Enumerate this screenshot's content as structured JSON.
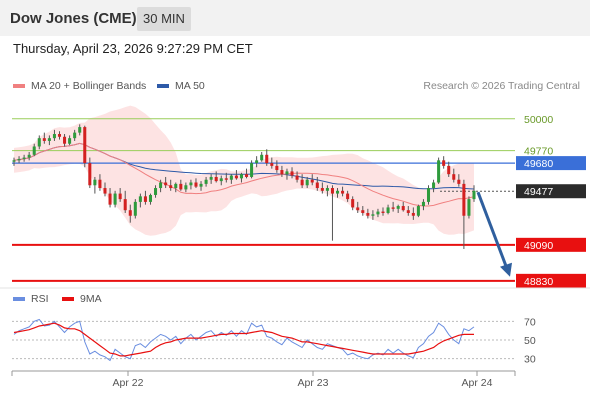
{
  "header": {
    "title": "Dow Jones (CME)",
    "interval": "30 MIN"
  },
  "datetime": "Thursday, April 23, 2026 9:27:29 PM CET",
  "legend": {
    "ma20": "MA 20 + Bollinger Bands",
    "ma50": "MA 50",
    "rsi": "RSI",
    "ma9": "9MA"
  },
  "copyright": "Research © 2026 Trading Central",
  "colors": {
    "ma20": "#f08080",
    "ma50": "#2e5aa8",
    "band": "#fde3e3",
    "bull": "#2e9b3c",
    "bear": "#d32020",
    "green_level": "#9acd5a",
    "blue_level": "#3a6fd8",
    "red_level": "#e81010",
    "current": "#333333",
    "rsi_line": "#6a8ee0",
    "rsi_ma": "#e81010"
  },
  "chart_data": {
    "type": "candlestick",
    "ylim": [
      48800,
      50150
    ],
    "levels": [
      {
        "value": 50000,
        "label": "50000",
        "kind": "green"
      },
      {
        "value": 49770,
        "label": "49770",
        "kind": "green"
      },
      {
        "value": 49680,
        "label": "49680",
        "kind": "blue"
      },
      {
        "value": 49477,
        "label": "49477",
        "kind": "current"
      },
      {
        "value": 49090,
        "label": "49090",
        "kind": "red"
      },
      {
        "value": 48830,
        "label": "48830",
        "kind": "red"
      }
    ],
    "x_ticks": [
      "Apr 22",
      "Apr 23",
      "Apr 24"
    ],
    "forecast_arrow": {
      "from": 49470,
      "to": 48860
    },
    "candles": [
      [
        49690,
        49720,
        49660,
        49700
      ],
      [
        49700,
        49730,
        49680,
        49710
      ],
      [
        49710,
        49740,
        49690,
        49720
      ],
      [
        49720,
        49760,
        49700,
        49740
      ],
      [
        49740,
        49820,
        49730,
        49800
      ],
      [
        49800,
        49880,
        49780,
        49860
      ],
      [
        49860,
        49900,
        49820,
        49840
      ],
      [
        49840,
        49880,
        49810,
        49860
      ],
      [
        49860,
        49920,
        49840,
        49890
      ],
      [
        49890,
        49910,
        49850,
        49870
      ],
      [
        49870,
        49890,
        49800,
        49820
      ],
      [
        49820,
        49880,
        49810,
        49860
      ],
      [
        49860,
        49920,
        49840,
        49900
      ],
      [
        49900,
        49960,
        49880,
        49940
      ],
      [
        49940,
        49950,
        49650,
        49680
      ],
      [
        49680,
        49720,
        49500,
        49520
      ],
      [
        49520,
        49580,
        49460,
        49560
      ],
      [
        49560,
        49600,
        49480,
        49500
      ],
      [
        49500,
        49540,
        49440,
        49460
      ],
      [
        49460,
        49500,
        49360,
        49380
      ],
      [
        49380,
        49480,
        49360,
        49460
      ],
      [
        49460,
        49500,
        49400,
        49420
      ],
      [
        49420,
        49480,
        49320,
        49340
      ],
      [
        49340,
        49380,
        49250,
        49300
      ],
      [
        49300,
        49420,
        49280,
        49400
      ],
      [
        49400,
        49460,
        49360,
        49440
      ],
      [
        49440,
        49480,
        49380,
        49400
      ],
      [
        49400,
        49460,
        49380,
        49450
      ],
      [
        49450,
        49520,
        49430,
        49500
      ],
      [
        49500,
        49560,
        49470,
        49540
      ],
      [
        49540,
        49580,
        49500,
        49520
      ],
      [
        49520,
        49560,
        49480,
        49500
      ],
      [
        49500,
        49540,
        49470,
        49530
      ],
      [
        49530,
        49560,
        49480,
        49490
      ],
      [
        49490,
        49540,
        49470,
        49520
      ],
      [
        49520,
        49560,
        49490,
        49540
      ],
      [
        49540,
        49570,
        49500,
        49510
      ],
      [
        49510,
        49550,
        49480,
        49530
      ],
      [
        49530,
        49580,
        49510,
        49560
      ],
      [
        49560,
        49600,
        49530,
        49580
      ],
      [
        49580,
        49620,
        49540,
        49550
      ],
      [
        49550,
        49590,
        49520,
        49570
      ],
      [
        49570,
        49610,
        49540,
        49560
      ],
      [
        49560,
        49600,
        49530,
        49590
      ],
      [
        49590,
        49630,
        49560,
        49570
      ],
      [
        49570,
        49610,
        49540,
        49600
      ],
      [
        49600,
        49640,
        49570,
        49580
      ],
      [
        49580,
        49700,
        49570,
        49680
      ],
      [
        49680,
        49730,
        49650,
        49700
      ],
      [
        49700,
        49760,
        49690,
        49740
      ],
      [
        49740,
        49780,
        49660,
        49680
      ],
      [
        49680,
        49720,
        49640,
        49660
      ],
      [
        49660,
        49700,
        49610,
        49630
      ],
      [
        49630,
        49660,
        49580,
        49600
      ],
      [
        49600,
        49640,
        49560,
        49620
      ],
      [
        49620,
        49650,
        49570,
        49590
      ],
      [
        49590,
        49620,
        49540,
        49560
      ],
      [
        49560,
        49600,
        49500,
        49520
      ],
      [
        49520,
        49580,
        49500,
        49560
      ],
      [
        49560,
        49600,
        49520,
        49540
      ],
      [
        49540,
        49580,
        49480,
        49500
      ],
      [
        49500,
        49540,
        49460,
        49480
      ],
      [
        49480,
        49520,
        49440,
        49500
      ],
      [
        49500,
        49520,
        49120,
        49460
      ],
      [
        49460,
        49500,
        49430,
        49480
      ],
      [
        49480,
        49510,
        49440,
        49460
      ],
      [
        49460,
        49480,
        49400,
        49420
      ],
      [
        49420,
        49440,
        49340,
        49360
      ],
      [
        49360,
        49400,
        49320,
        49340
      ],
      [
        49340,
        49370,
        49300,
        49320
      ],
      [
        49320,
        49350,
        49280,
        49300
      ],
      [
        49300,
        49340,
        49270,
        49310
      ],
      [
        49310,
        49350,
        49290,
        49330
      ],
      [
        49330,
        49360,
        49300,
        49320
      ],
      [
        49320,
        49380,
        49310,
        49360
      ],
      [
        49360,
        49400,
        49330,
        49350
      ],
      [
        49350,
        49380,
        49320,
        49370
      ],
      [
        49370,
        49400,
        49330,
        49340
      ],
      [
        49340,
        49370,
        49300,
        49320
      ],
      [
        49320,
        49360,
        49270,
        49300
      ],
      [
        49300,
        49380,
        49290,
        49370
      ],
      [
        49370,
        49420,
        49340,
        49400
      ],
      [
        49400,
        49520,
        49380,
        49500
      ],
      [
        49500,
        49560,
        49470,
        49540
      ],
      [
        49540,
        49720,
        49530,
        49700
      ],
      [
        49700,
        49730,
        49640,
        49660
      ],
      [
        49660,
        49690,
        49580,
        49600
      ],
      [
        49600,
        49640,
        49540,
        49560
      ],
      [
        49560,
        49600,
        49510,
        49530
      ],
      [
        49530,
        49560,
        49060,
        49300
      ],
      [
        49300,
        49440,
        49280,
        49420
      ],
      [
        49420,
        49520,
        49400,
        49480
      ]
    ]
  },
  "rsi_data": {
    "ylim": [
      20,
      80
    ],
    "ticks": [
      70,
      50,
      30
    ],
    "rsi": [
      56,
      60,
      62,
      64,
      70,
      72,
      65,
      66,
      70,
      64,
      58,
      64,
      68,
      70,
      48,
      35,
      38,
      34,
      32,
      28,
      40,
      36,
      32,
      30,
      44,
      46,
      42,
      48,
      52,
      56,
      54,
      50,
      54,
      46,
      52,
      56,
      50,
      54,
      58,
      60,
      54,
      58,
      55,
      60,
      54,
      60,
      56,
      68,
      64,
      66,
      54,
      52,
      48,
      45,
      52,
      48,
      45,
      42,
      50,
      46,
      42,
      40,
      46,
      44,
      42,
      40,
      34,
      36,
      33,
      31,
      30,
      34,
      36,
      34,
      40,
      36,
      40,
      36,
      33,
      31,
      42,
      46,
      54,
      58,
      68,
      64,
      56,
      50,
      46,
      62,
      60,
      64
    ],
    "ma9": [
      58,
      59,
      60,
      61,
      63,
      65,
      66,
      67,
      68,
      66,
      63,
      62,
      62,
      60,
      56,
      52,
      48,
      44,
      40,
      36,
      35,
      33,
      33,
      34,
      35,
      36,
      37,
      38,
      42,
      45,
      47,
      48,
      50,
      51,
      52,
      52,
      52,
      52,
      53,
      54,
      55,
      56,
      56,
      57,
      57,
      57,
      57,
      58,
      59,
      60,
      59,
      58,
      56,
      54,
      53,
      52,
      50,
      48,
      48,
      47,
      46,
      45,
      44,
      43,
      42,
      41,
      40,
      39,
      38,
      37,
      36,
      35,
      35,
      35,
      35,
      35,
      35,
      35,
      35,
      36,
      37,
      38,
      40,
      42,
      46,
      49,
      51,
      53,
      55,
      56,
      56,
      56
    ]
  }
}
